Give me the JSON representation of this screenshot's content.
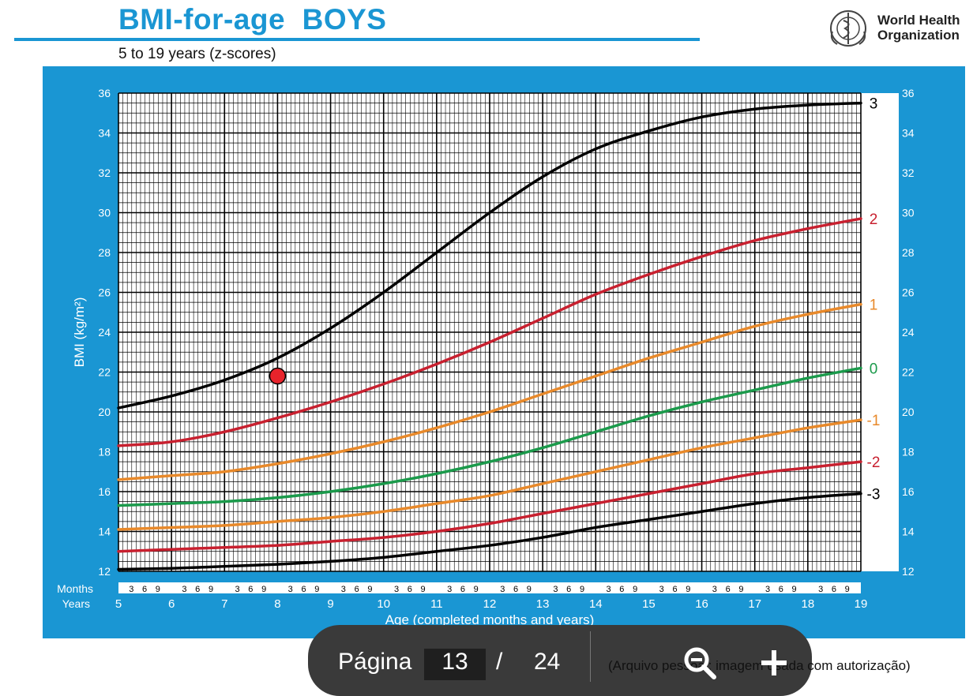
{
  "header": {
    "title": "BMI-for-age  BOYS",
    "subtitle": "5 to 19 years (z-scores)",
    "org_line1": "World Health",
    "org_line2": "Organization",
    "logo_icon": "who-emblem-icon"
  },
  "chart_data": {
    "type": "line",
    "ylabel": "BMI (kg/m²)",
    "xlabel": "Age (completed months and years)",
    "xlim": [
      5,
      19
    ],
    "ylim": [
      12,
      36
    ],
    "y_ticks": [
      12,
      14,
      16,
      18,
      20,
      22,
      24,
      26,
      28,
      30,
      32,
      34,
      36
    ],
    "year_ticks": [
      "5",
      "6",
      "7",
      "8",
      "9",
      "10",
      "11",
      "12",
      "13",
      "14",
      "15",
      "16",
      "17",
      "18",
      "19"
    ],
    "month_ticks": [
      "3",
      "6",
      "9"
    ],
    "row_label_months": "Months",
    "row_label_years": "Years",
    "grid": true,
    "x": [
      5,
      6,
      7,
      8,
      9,
      10,
      11,
      12,
      13,
      14,
      15,
      16,
      17,
      18,
      19
    ],
    "series": [
      {
        "name": "3",
        "color": "#000000",
        "values": [
          20.2,
          20.8,
          21.6,
          22.7,
          24.2,
          26.0,
          28.0,
          30.0,
          31.8,
          33.2,
          34.1,
          34.8,
          35.2,
          35.4,
          35.5
        ]
      },
      {
        "name": "2",
        "color": "#c8202f",
        "values": [
          18.3,
          18.5,
          19.0,
          19.7,
          20.5,
          21.4,
          22.4,
          23.5,
          24.7,
          25.9,
          26.9,
          27.8,
          28.6,
          29.2,
          29.7
        ]
      },
      {
        "name": "1",
        "color": "#e8892a",
        "values": [
          16.6,
          16.8,
          17.0,
          17.4,
          17.9,
          18.5,
          19.2,
          20.0,
          20.9,
          21.8,
          22.7,
          23.5,
          24.3,
          24.9,
          25.4
        ]
      },
      {
        "name": "0",
        "color": "#1b9a4b",
        "values": [
          15.3,
          15.4,
          15.5,
          15.7,
          16.0,
          16.4,
          16.9,
          17.5,
          18.2,
          19.0,
          19.8,
          20.5,
          21.1,
          21.7,
          22.2
        ]
      },
      {
        "name": "-1",
        "color": "#e8892a",
        "values": [
          14.1,
          14.2,
          14.3,
          14.5,
          14.7,
          15.0,
          15.4,
          15.8,
          16.4,
          17.0,
          17.6,
          18.2,
          18.7,
          19.2,
          19.6
        ]
      },
      {
        "name": "-2",
        "color": "#c8202f",
        "values": [
          13.0,
          13.1,
          13.2,
          13.3,
          13.5,
          13.7,
          14.0,
          14.4,
          14.9,
          15.4,
          15.9,
          16.4,
          16.9,
          17.2,
          17.5
        ]
      },
      {
        "name": "-3",
        "color": "#000000",
        "values": [
          12.1,
          12.15,
          12.25,
          12.35,
          12.5,
          12.7,
          13.0,
          13.3,
          13.7,
          14.2,
          14.6,
          15.0,
          15.4,
          15.7,
          15.9
        ]
      }
    ],
    "marker": {
      "x": 8.0,
      "y": 21.8,
      "color": "#e8232b"
    }
  },
  "viewer": {
    "page_label": "Página",
    "page_current": "13",
    "page_separator": "/",
    "page_total": "24",
    "credit": "(Arquivo pessoal; imagem usada com autorização)",
    "zoom_out_icon": "zoom-out-icon",
    "zoom_in_icon": "zoom-in-icon"
  }
}
